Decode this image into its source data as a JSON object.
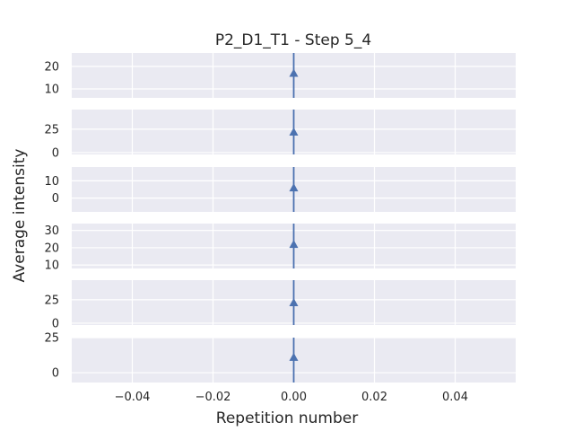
{
  "chart_data": {
    "type": "scatter",
    "title": "P2_D1_T1 - Step 5_4",
    "xlabel": "Repetition number",
    "ylabel": "Average intensity",
    "xlim": [
      -0.055,
      0.055
    ],
    "xticks": [
      -0.04,
      -0.02,
      0.0,
      0.02,
      0.04
    ],
    "xtick_labels": [
      "−0.04",
      "−0.02",
      "0.00",
      "0.02",
      "0.04"
    ],
    "grid": true,
    "marker": "triangle-up",
    "color": "#4c72b0",
    "panels": [
      {
        "ylim": [
          6,
          26
        ],
        "yticks": [
          10,
          20
        ],
        "ytick_labels": [
          "10",
          "20"
        ],
        "x": [
          0
        ],
        "y": [
          17
        ],
        "yerr_low": [
          6
        ],
        "yerr_high": [
          26
        ]
      },
      {
        "ylim": [
          -2,
          46
        ],
        "yticks": [
          0,
          25
        ],
        "ytick_labels": [
          "0",
          "25"
        ],
        "x": [
          0
        ],
        "y": [
          22
        ],
        "yerr_low": [
          -2
        ],
        "yerr_high": [
          46
        ]
      },
      {
        "ylim": [
          -8,
          18
        ],
        "yticks": [
          0,
          10
        ],
        "ytick_labels": [
          "0",
          "10"
        ],
        "x": [
          0
        ],
        "y": [
          6
        ],
        "yerr_low": [
          -8
        ],
        "yerr_high": [
          18
        ]
      },
      {
        "ylim": [
          8,
          34
        ],
        "yticks": [
          10,
          20,
          30
        ],
        "ytick_labels": [
          "10",
          "20",
          "30"
        ],
        "x": [
          0
        ],
        "y": [
          22
        ],
        "yerr_low": [
          8
        ],
        "yerr_high": [
          34
        ]
      },
      {
        "ylim": [
          -2,
          46
        ],
        "yticks": [
          0,
          25
        ],
        "ytick_labels": [
          "0",
          "25"
        ],
        "x": [
          0
        ],
        "y": [
          22
        ],
        "yerr_low": [
          -2
        ],
        "yerr_high": [
          46
        ]
      },
      {
        "ylim": [
          -7,
          25
        ],
        "yticks": [
          0,
          25
        ],
        "ytick_labels": [
          "0",
          "25"
        ],
        "x": [
          0
        ],
        "y": [
          11
        ],
        "yerr_low": [
          -7
        ],
        "yerr_high": [
          25
        ]
      }
    ]
  }
}
